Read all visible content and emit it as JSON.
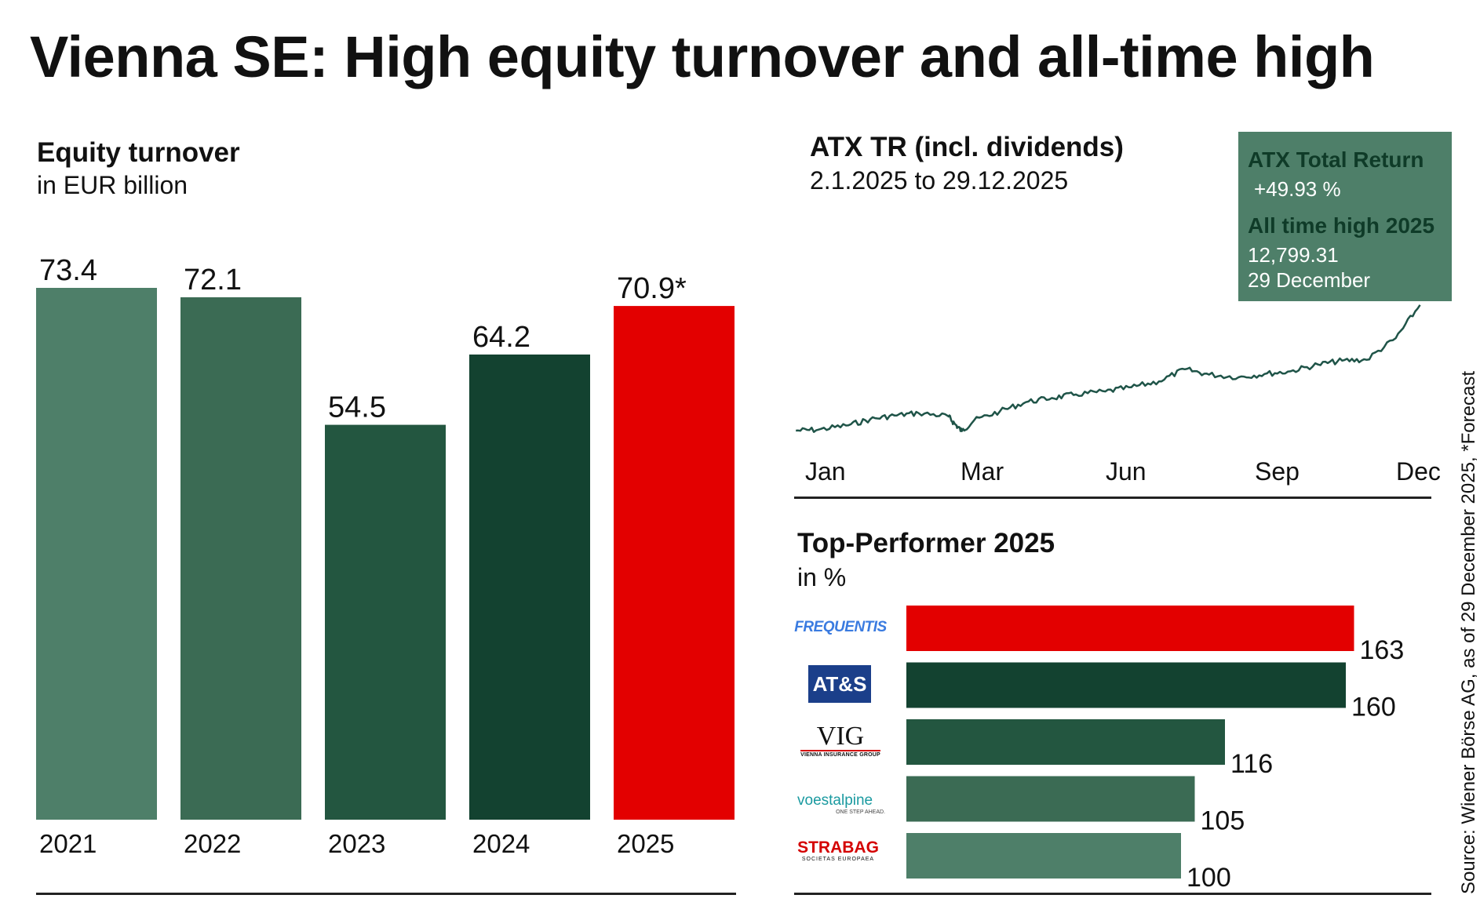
{
  "title": "Vienna SE: High equity turnover and all-time high",
  "colors": {
    "green_light": "#4e7f69",
    "green_mid": "#3b6b54",
    "green_dark": "#235640",
    "green_darkest": "#134230",
    "red": "#e30000",
    "line": "#1f5448",
    "box_bg": "#4e7f69"
  },
  "equity_turnover": {
    "title": "Equity turnover",
    "subtitle": "in EUR billion"
  },
  "atx": {
    "title": "ATX TR (incl. dividends)",
    "subtitle": "2.1.2025 to 29.12.2025",
    "box": {
      "total_return_label": "ATX Total Return",
      "total_return_value": "+49.93 %",
      "ath_label": "All time high 2025",
      "ath_value": "12,799.31",
      "ath_date": "29 December"
    }
  },
  "top_performer": {
    "title": "Top-Performer 2025",
    "subtitle": "in %",
    "logos": {
      "frequentis": "FREQUENTIS",
      "ats": "AT&S",
      "vig": "VIG",
      "vig_sub": "VIENNA INSURANCE GROUP",
      "voest": "voestalpine",
      "voest_sub": "ONE STEP AHEAD.",
      "strabag": "STRABAG",
      "strabag_sub": "SOCIETAS EUROPAEA"
    }
  },
  "source": "Source: Wiener Börse AG, as of 29 December 2025, *Forecast",
  "chart_data": [
    {
      "type": "bar",
      "title": "Equity turnover",
      "ylabel": "in EUR billion",
      "categories": [
        "2021",
        "2022",
        "2023",
        "2024",
        "2025"
      ],
      "values": [
        73.4,
        72.1,
        54.5,
        64.2,
        70.9
      ],
      "labels": [
        "73.4",
        "72.1",
        "54.5",
        "64.2",
        "70.9*"
      ],
      "colors": [
        "#4e7f69",
        "#3b6b54",
        "#235640",
        "#134230",
        "#e30000"
      ],
      "ylim": [
        0,
        73.4
      ],
      "grid": false
    },
    {
      "type": "line",
      "title": "ATX TR (incl. dividends)",
      "xticks": [
        "Jan",
        "Mar",
        "Jun",
        "Sep",
        "Dec"
      ],
      "series": [
        {
          "x": [
            "2025-01-02",
            "2025-01-15",
            "2025-01-31",
            "2025-02-14",
            "2025-02-28",
            "2025-03-14",
            "2025-03-31",
            "2025-04-04",
            "2025-04-08",
            "2025-04-15",
            "2025-04-30",
            "2025-05-15",
            "2025-05-30",
            "2025-06-13",
            "2025-06-30",
            "2025-07-15",
            "2025-07-31",
            "2025-08-15",
            "2025-08-29",
            "2025-09-15",
            "2025-09-30",
            "2025-10-15",
            "2025-10-31",
            "2025-11-14",
            "2025-11-28",
            "2025-12-15",
            "2025-12-29"
          ],
          "values": [
            8560,
            8590,
            8730,
            8940,
            9070,
            9150,
            9050,
            8780,
            8540,
            8900,
            9210,
            9520,
            9660,
            9780,
            9880,
            10020,
            10220,
            10630,
            10450,
            10360,
            10470,
            10560,
            10790,
            10920,
            10950,
            11680,
            12799.31
          ]
        }
      ],
      "grid": false
    },
    {
      "type": "bar",
      "orientation": "horizontal",
      "title": "Top-Performer 2025",
      "xlabel": "in %",
      "categories": [
        "FREQUENTIS",
        "AT&S",
        "VIG",
        "voestalpine",
        "STRABAG"
      ],
      "values": [
        163,
        160,
        116,
        105,
        100
      ],
      "colors": [
        "#e30000",
        "#134230",
        "#235640",
        "#3b6b54",
        "#4e7f69"
      ],
      "grid": false
    }
  ]
}
